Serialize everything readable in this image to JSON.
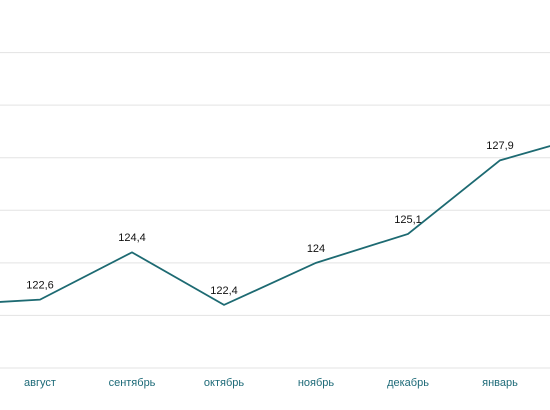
{
  "chart_data": {
    "type": "line",
    "categories": [
      null,
      "август",
      "сентябрь",
      "октябрь",
      "ноябрь",
      "декабрь",
      "январь",
      null
    ],
    "series": [
      {
        "color": "#1d6a72",
        "values": [
          122.4,
          122.6,
          124.4,
          122.4,
          124,
          125.1,
          127.9,
          128.9
        ],
        "value_labels": [
          null,
          "122,6",
          "124,4",
          "122,4",
          "124",
          "125,1",
          "127,9",
          null
        ]
      }
    ],
    "ylim": [
      120,
      134
    ],
    "yticks": [
      122,
      124,
      126,
      128,
      130,
      132
    ],
    "grid": true
  }
}
